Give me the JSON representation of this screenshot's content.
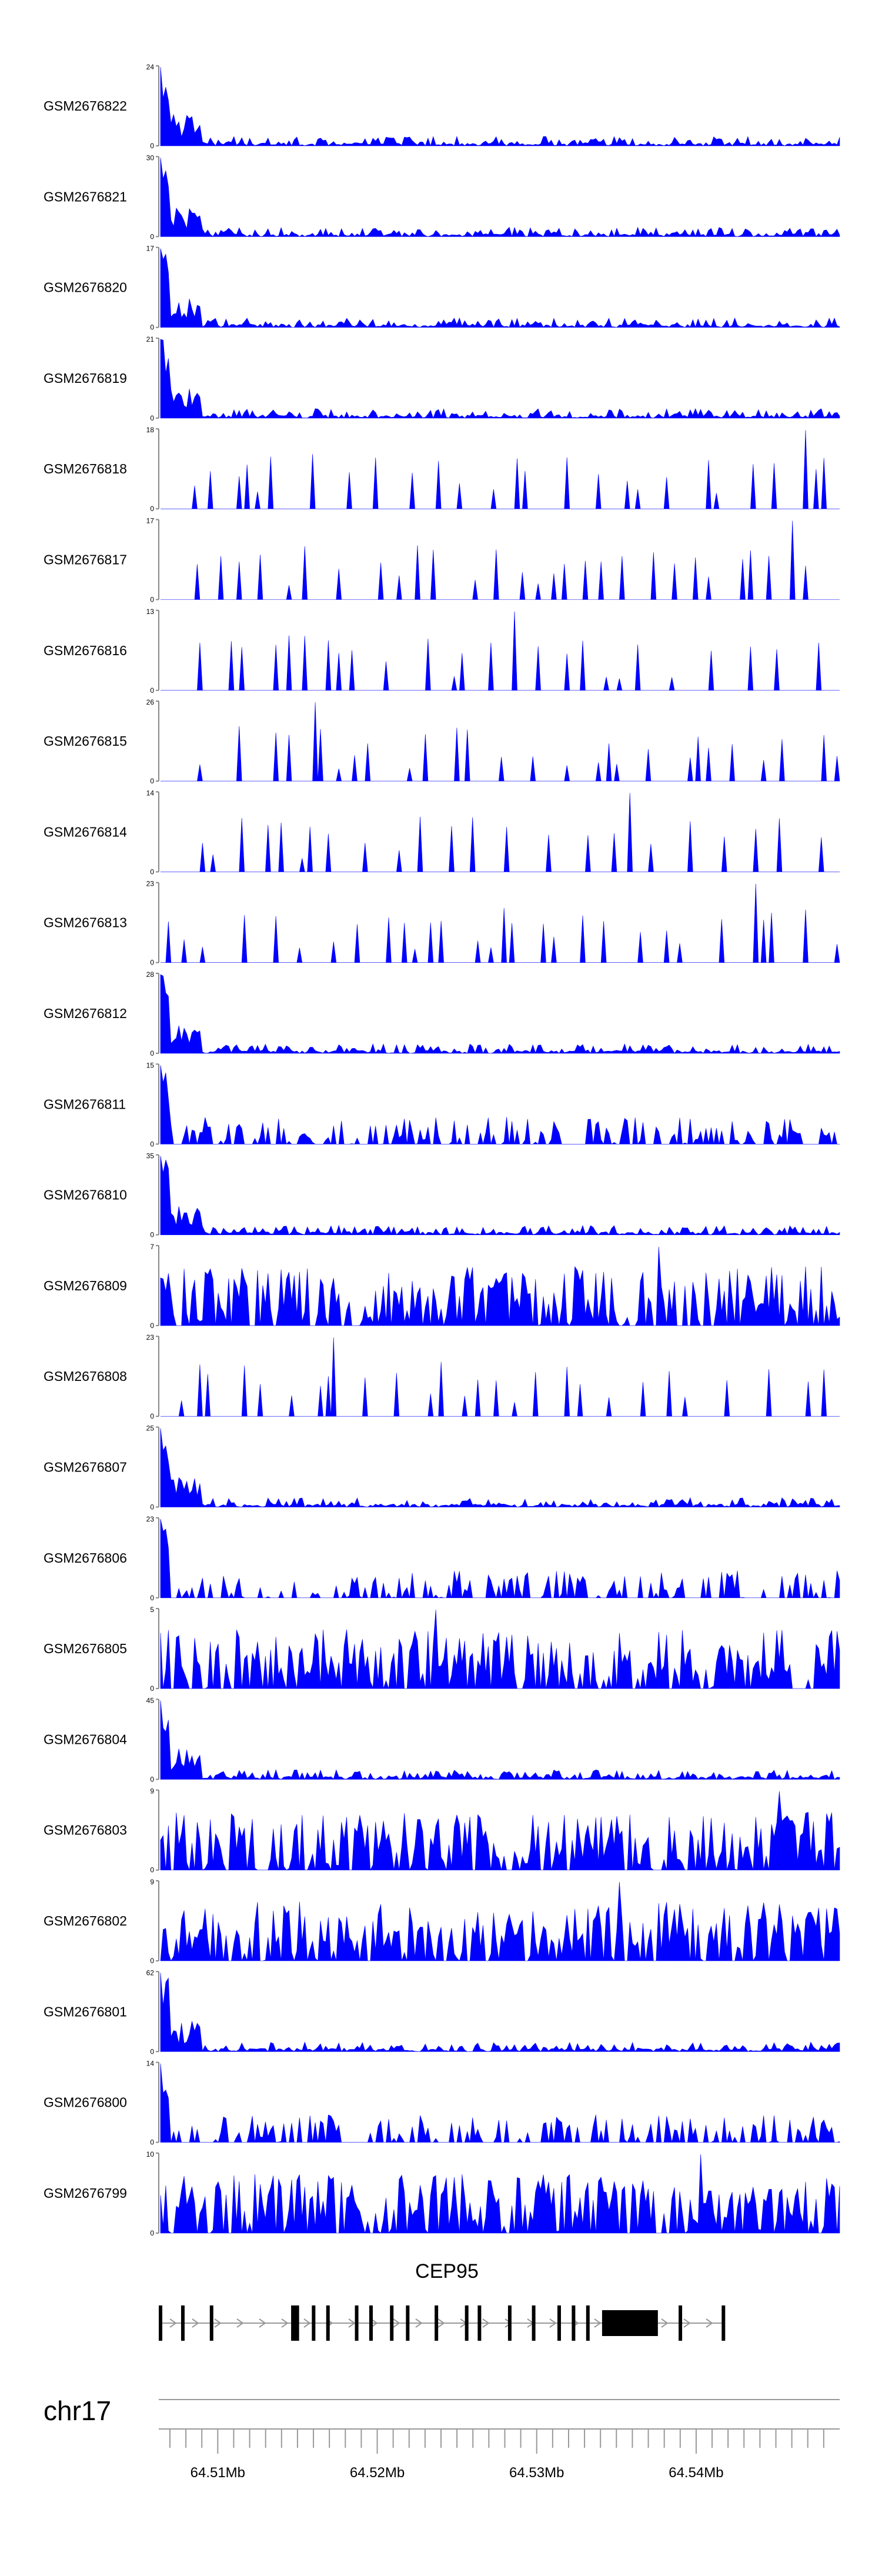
{
  "chart_data": {
    "type": "area",
    "chromosome": "chr17",
    "gene": {
      "name": "CEP95",
      "strand": "+",
      "start_mb": 64.5063,
      "end_mb": 64.5417,
      "exons_mb": [
        {
          "start": 64.5063,
          "end": 64.5064
        },
        {
          "start": 64.5077,
          "end": 64.5078
        },
        {
          "start": 64.5095,
          "end": 64.5096
        },
        {
          "start": 64.5146,
          "end": 64.5151
        },
        {
          "start": 64.5159,
          "end": 64.516
        },
        {
          "start": 64.5168,
          "end": 64.5169
        },
        {
          "start": 64.5186,
          "end": 64.5187
        },
        {
          "start": 64.5195,
          "end": 64.5196
        },
        {
          "start": 64.5208,
          "end": 64.5209
        },
        {
          "start": 64.5218,
          "end": 64.5219
        },
        {
          "start": 64.5236,
          "end": 64.5237
        },
        {
          "start": 64.5255,
          "end": 64.5256
        },
        {
          "start": 64.5263,
          "end": 64.5264
        },
        {
          "start": 64.5282,
          "end": 64.5283
        },
        {
          "start": 64.5297,
          "end": 64.5298
        },
        {
          "start": 64.5313,
          "end": 64.5314
        },
        {
          "start": 64.5322,
          "end": 64.5323
        },
        {
          "start": 64.5331,
          "end": 64.5332
        },
        {
          "start": 64.5341,
          "end": 64.5376
        },
        {
          "start": 64.5389,
          "end": 64.539
        },
        {
          "start": 64.5416,
          "end": 64.5417
        }
      ]
    },
    "x_range_mb": [
      64.5063,
      64.549
    ],
    "x_ticks": [
      {
        "value": 64.51,
        "label": "64.51Mb"
      },
      {
        "value": 64.52,
        "label": "64.52Mb"
      },
      {
        "value": 64.53,
        "label": "64.53Mb"
      },
      {
        "value": 64.54,
        "label": "64.54Mb"
      }
    ],
    "fill_color": "#0000ff",
    "grid": false,
    "legend": "none",
    "tracks": [
      {
        "name": "GSM2676822",
        "ymax": 24,
        "profile": "spike"
      },
      {
        "name": "GSM2676821",
        "ymax": 30,
        "profile": "spike"
      },
      {
        "name": "GSM2676820",
        "ymax": 17,
        "profile": "spike"
      },
      {
        "name": "GSM2676819",
        "ymax": 21,
        "profile": "spike"
      },
      {
        "name": "GSM2676818",
        "ymax": 18,
        "profile": "sparse"
      },
      {
        "name": "GSM2676817",
        "ymax": 17,
        "profile": "sparse"
      },
      {
        "name": "GSM2676816",
        "ymax": 13,
        "profile": "sparse"
      },
      {
        "name": "GSM2676815",
        "ymax": 26,
        "profile": "sparse"
      },
      {
        "name": "GSM2676814",
        "ymax": 14,
        "profile": "sparse"
      },
      {
        "name": "GSM2676813",
        "ymax": 23,
        "profile": "sparse"
      },
      {
        "name": "GSM2676812",
        "ymax": 28,
        "profile": "spike"
      },
      {
        "name": "GSM2676811",
        "ymax": 15,
        "profile": "medium"
      },
      {
        "name": "GSM2676810",
        "ymax": 35,
        "profile": "spike"
      },
      {
        "name": "GSM2676809",
        "ymax": 7,
        "profile": "dense"
      },
      {
        "name": "GSM2676808",
        "ymax": 23,
        "profile": "sparse"
      },
      {
        "name": "GSM2676807",
        "ymax": 25,
        "profile": "spike"
      },
      {
        "name": "GSM2676806",
        "ymax": 23,
        "profile": "medium"
      },
      {
        "name": "GSM2676805",
        "ymax": 5,
        "profile": "dense"
      },
      {
        "name": "GSM2676804",
        "ymax": 45,
        "profile": "spike"
      },
      {
        "name": "GSM2676803",
        "ymax": 9,
        "profile": "dense"
      },
      {
        "name": "GSM2676802",
        "ymax": 9,
        "profile": "dense"
      },
      {
        "name": "GSM2676801",
        "ymax": 62,
        "profile": "spike"
      },
      {
        "name": "GSM2676800",
        "ymax": 14,
        "profile": "medium"
      },
      {
        "name": "GSM2676799",
        "ymax": 10,
        "profile": "dense"
      }
    ]
  }
}
